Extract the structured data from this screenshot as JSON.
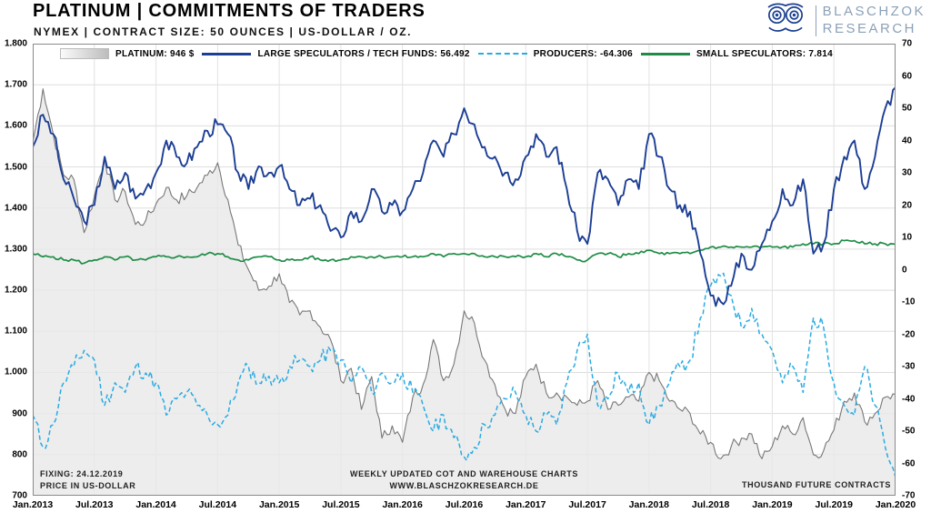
{
  "header": {
    "title": "PLATINUM | COMMITMENTS OF TRADERS",
    "subtitle": "NYMEX | CONTRACT SIZE: 50 OUNCES | US-DOLLAR / OZ.",
    "brand_line1": "BLASCHZOK",
    "brand_line2": "RESEARCH"
  },
  "legend": [
    {
      "label": "PLATINUM: 946 $",
      "type": "area",
      "color": "#cfcfcf"
    },
    {
      "label": "LARGE SPECULATORS / TECH FUNDS: 56.492",
      "type": "line",
      "color": "#1c3e94"
    },
    {
      "label": "PRODUCERS: -64.306",
      "type": "dash",
      "color": "#29abe2"
    },
    {
      "label": "SMALL SPECULATORS: 7.814",
      "type": "green",
      "color": "#1e8c46"
    }
  ],
  "footnotes": {
    "fixing": "FIXING: 24.12.2019",
    "price_unit": "PRICE IN US-DOLLAR",
    "center_line1": "WEEKLY UPDATED COT AND WAREHOUSE CHARTS",
    "center_line2": "WWW.BLASCHZOKRESEARCH.DE",
    "right_unit": "THOUSAND FUTURE CONTRACTS"
  },
  "chart_data": {
    "type": "line",
    "title": "PLATINUM | COMMITMENTS OF TRADERS",
    "subtitle": "NYMEX | CONTRACT SIZE: 50 OUNCES | US-DOLLAR / OZ.",
    "legend_position": "top",
    "grid": true,
    "x_resolution": "monthly estimates read from weekly chart, Jan.2013 - Jan.2020",
    "x_tick_labels": [
      "Jan.2013",
      "Jul.2013",
      "Jan.2014",
      "Jul.2014",
      "Jan.2015",
      "Jul.2015",
      "Jan.2016",
      "Jul.2016",
      "Jan.2017",
      "Jul.2017",
      "Jan.2018",
      "Jul.2018",
      "Jan.2019",
      "Jul.2019",
      "Jan.2020"
    ],
    "left_axis": {
      "label": "PRICE IN US-DOLLAR",
      "min": 700,
      "max": 1800,
      "tick_labels": [
        "1.800",
        "1.700",
        "1.600",
        "1.500",
        "1.400",
        "1.300",
        "1.200",
        "1.100",
        "1.000",
        "900",
        "800",
        "700"
      ],
      "tick_values": [
        1800,
        1700,
        1600,
        1500,
        1400,
        1300,
        1200,
        1100,
        1000,
        900,
        800,
        700
      ]
    },
    "right_axis": {
      "label": "THOUSAND FUTURE CONTRACTS",
      "min": -70,
      "max": 70,
      "tick_labels": [
        "70",
        "60",
        "50",
        "40",
        "30",
        "20",
        "10",
        "0",
        "-10",
        "-20",
        "-30",
        "-40",
        "-50",
        "-60",
        "-70"
      ],
      "tick_values": [
        70,
        60,
        50,
        40,
        30,
        20,
        10,
        0,
        -10,
        -20,
        -30,
        -40,
        -50,
        -60,
        -70
      ]
    },
    "series": [
      {
        "name": "PLATINUM",
        "axis": "left",
        "style": "area",
        "color": "#777777",
        "fill": "#e9e9e9",
        "last_value": 946,
        "values": [
          1560,
          1690,
          1580,
          1480,
          1470,
          1340,
          1430,
          1520,
          1420,
          1440,
          1360,
          1370,
          1410,
          1450,
          1420,
          1430,
          1450,
          1480,
          1510,
          1420,
          1310,
          1250,
          1200,
          1210,
          1240,
          1170,
          1140,
          1150,
          1110,
          1080,
          980,
          1010,
          910,
          990,
          840,
          870,
          830,
          940,
          970,
          1080,
          980,
          1020,
          1150,
          1120,
          1030,
          970,
          910,
          900,
          990,
          1020,
          950,
          950,
          940,
          920,
          930,
          980,
          910,
          920,
          940,
          930,
          1000,
          980,
          930,
          910,
          900,
          850,
          830,
          790,
          820,
          840,
          850,
          790,
          820,
          870,
          850,
          890,
          800,
          810,
          860,
          930,
          950,
          880,
          900,
          940,
          946
        ]
      },
      {
        "name": "LARGE SPECULATORS / TECH FUNDS",
        "axis": "right",
        "style": "line",
        "color": "#1c3e94",
        "last_value": 56.492,
        "values": [
          38,
          48,
          42,
          28,
          22,
          15,
          20,
          35,
          25,
          30,
          22,
          25,
          30,
          40,
          35,
          33,
          38,
          43,
          45,
          42,
          30,
          25,
          32,
          30,
          32,
          25,
          20,
          22,
          20,
          12,
          10,
          18,
          15,
          25,
          18,
          20,
          18,
          25,
          30,
          40,
          35,
          42,
          50,
          45,
          38,
          35,
          30,
          28,
          35,
          42,
          35,
          38,
          25,
          12,
          8,
          30,
          28,
          20,
          28,
          25,
          42,
          35,
          25,
          20,
          18,
          5,
          -8,
          -10,
          -5,
          5,
          0,
          8,
          15,
          25,
          20,
          28,
          5,
          8,
          25,
          35,
          40,
          25,
          35,
          50,
          56.492
        ]
      },
      {
        "name": "PRODUCERS",
        "axis": "right",
        "style": "dashed",
        "color": "#29abe2",
        "last_value": -64.306,
        "values": [
          -45,
          -55,
          -48,
          -35,
          -30,
          -25,
          -28,
          -42,
          -35,
          -38,
          -30,
          -32,
          -35,
          -45,
          -40,
          -38,
          -42,
          -45,
          -48,
          -45,
          -35,
          -30,
          -35,
          -33,
          -35,
          -30,
          -28,
          -30,
          -28,
          -25,
          -28,
          -35,
          -30,
          -38,
          -32,
          -35,
          -32,
          -38,
          -42,
          -50,
          -45,
          -52,
          -58,
          -55,
          -48,
          -45,
          -40,
          -38,
          -45,
          -50,
          -45,
          -48,
          -35,
          -25,
          -20,
          -42,
          -40,
          -32,
          -38,
          -35,
          -48,
          -42,
          -35,
          -30,
          -28,
          -15,
          -5,
          -2,
          -8,
          -18,
          -12,
          -20,
          -25,
          -35,
          -30,
          -38,
          -15,
          -18,
          -35,
          -42,
          -45,
          -30,
          -42,
          -55,
          -64.306
        ]
      },
      {
        "name": "SMALL SPECULATORS",
        "axis": "right",
        "style": "line",
        "color": "#1e8c46",
        "last_value": 7.814,
        "values": [
          5,
          4,
          4,
          3,
          3,
          2,
          3,
          4,
          3,
          4,
          3,
          3,
          4,
          4,
          4,
          4,
          4,
          5,
          5,
          4,
          3,
          3,
          4,
          4,
          3,
          3,
          3,
          4,
          3,
          3,
          3,
          4,
          4,
          4,
          4,
          4,
          4,
          4,
          4,
          5,
          4,
          5,
          5,
          5,
          4,
          4,
          4,
          4,
          4,
          5,
          4,
          5,
          4,
          3,
          3,
          5,
          5,
          4,
          5,
          5,
          6,
          5,
          5,
          5,
          5,
          6,
          7,
          7,
          7,
          7,
          7,
          7,
          7,
          7,
          7,
          8,
          8,
          8,
          8,
          9,
          9,
          8,
          8,
          8,
          7.814
        ]
      }
    ]
  }
}
